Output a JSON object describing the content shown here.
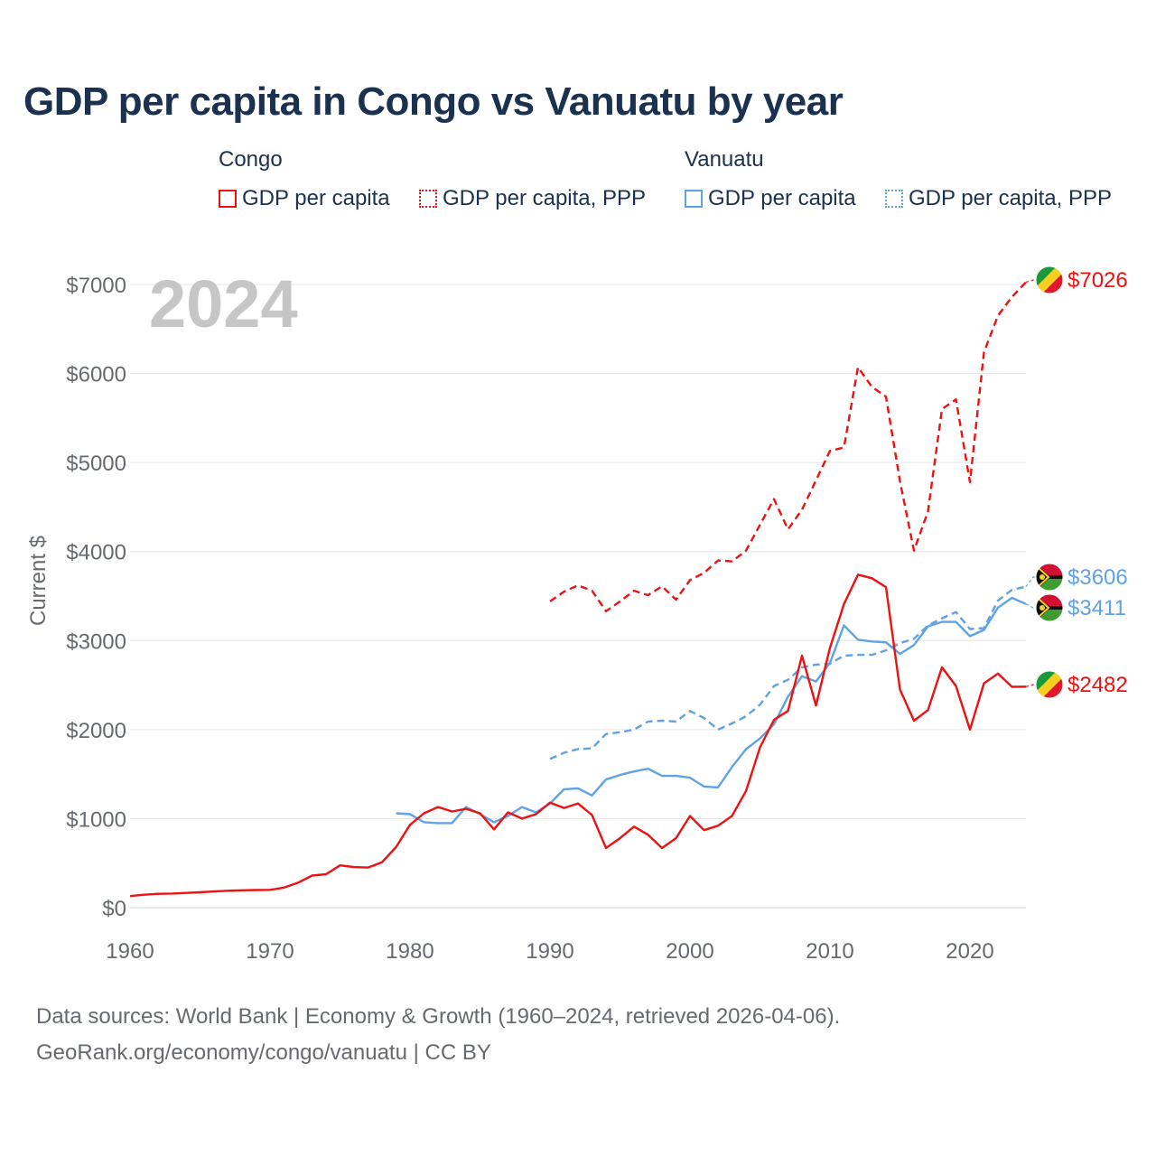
{
  "title": "GDP per capita in Congo vs Vanuatu by year",
  "legend": {
    "groups": [
      {
        "name": "Congo",
        "items": [
          "GDP per capita",
          "GDP per capita, PPP"
        ]
      },
      {
        "name": "Vanuatu",
        "items": [
          "GDP per capita",
          "GDP per capita, PPP"
        ]
      }
    ]
  },
  "colors": {
    "congo": "#ee1111",
    "vanuatu": "#5fa2e6",
    "grid": "#e6e6e6",
    "axis_text": "#666a70",
    "year_watermark": "#c6c6c6"
  },
  "footer": {
    "line1": "Data sources: World Bank | Economy & Growth (1960–2024, retrieved 2026-04-06).",
    "line2": "GeoRank.org/economy/congo/vanuatu | CC BY"
  },
  "chart_data": {
    "type": "line",
    "title": "GDP per capita in Congo vs Vanuatu by year",
    "year_watermark": "2024",
    "xlabel": "",
    "ylabel": "Current $",
    "xlim": [
      1960,
      2024
    ],
    "ylim": [
      0,
      7000
    ],
    "xticks": [
      1960,
      1970,
      1980,
      1990,
      2000,
      2010,
      2020
    ],
    "yticks": [
      0,
      1000,
      2000,
      3000,
      4000,
      5000,
      6000,
      7000
    ],
    "ytick_labels": [
      "$0",
      "$1000",
      "$2000",
      "$3000",
      "$4000",
      "$5000",
      "$6000",
      "$7000"
    ],
    "series": [
      {
        "name": "Congo – GDP per capita PPP",
        "color": "#ee1111",
        "style": "dashed",
        "end_label": "$7026",
        "x": [
          1990,
          1991,
          1992,
          1993,
          1994,
          1995,
          1996,
          1997,
          1998,
          1999,
          2000,
          2001,
          2002,
          2003,
          2004,
          2005,
          2006,
          2007,
          2008,
          2009,
          2010,
          2011,
          2012,
          2013,
          2014,
          2015,
          2016,
          2017,
          2018,
          2019,
          2020,
          2021,
          2022,
          2023,
          2024
        ],
        "values": [
          3440,
          3550,
          3620,
          3560,
          3330,
          3440,
          3560,
          3510,
          3610,
          3460,
          3680,
          3760,
          3900,
          3890,
          4010,
          4300,
          4590,
          4250,
          4470,
          4800,
          5130,
          5170,
          6070,
          5850,
          5740,
          4790,
          4010,
          4450,
          5600,
          5710,
          4780,
          6240,
          6650,
          6860,
          7026
        ]
      },
      {
        "name": "Vanuatu – GDP per capita PPP",
        "color": "#5fa2e6",
        "style": "dashed",
        "end_label": "$3606",
        "x": [
          1990,
          1991,
          1992,
          1993,
          1994,
          1995,
          1996,
          1997,
          1998,
          1999,
          2000,
          2001,
          2002,
          2003,
          2004,
          2005,
          2006,
          2007,
          2008,
          2009,
          2010,
          2011,
          2012,
          2013,
          2014,
          2015,
          2016,
          2017,
          2018,
          2019,
          2020,
          2021,
          2022,
          2023,
          2024
        ],
        "values": [
          1670,
          1740,
          1780,
          1790,
          1950,
          1970,
          2000,
          2090,
          2100,
          2090,
          2210,
          2130,
          2000,
          2070,
          2150,
          2280,
          2490,
          2560,
          2700,
          2730,
          2740,
          2830,
          2840,
          2840,
          2890,
          2970,
          3020,
          3170,
          3250,
          3320,
          3130,
          3140,
          3450,
          3570,
          3606
        ]
      },
      {
        "name": "Vanuatu – GDP per capita",
        "color": "#5fa2e6",
        "style": "solid",
        "end_label": "$3411",
        "x": [
          1979,
          1980,
          1981,
          1982,
          1983,
          1984,
          1985,
          1986,
          1987,
          1988,
          1989,
          1990,
          1991,
          1992,
          1993,
          1994,
          1995,
          1996,
          1997,
          1998,
          1999,
          2000,
          2001,
          2002,
          2003,
          2004,
          2005,
          2006,
          2007,
          2008,
          2009,
          2010,
          2011,
          2012,
          2013,
          2014,
          2015,
          2016,
          2017,
          2018,
          2019,
          2020,
          2021,
          2022,
          2023,
          2024
        ],
        "values": [
          1060,
          1050,
          960,
          950,
          950,
          1130,
          1050,
          960,
          1030,
          1130,
          1070,
          1170,
          1330,
          1340,
          1260,
          1440,
          1490,
          1530,
          1560,
          1480,
          1480,
          1460,
          1360,
          1350,
          1580,
          1780,
          1900,
          2060,
          2370,
          2600,
          2540,
          2750,
          3170,
          3010,
          2990,
          2980,
          2850,
          2950,
          3160,
          3210,
          3210,
          3050,
          3120,
          3370,
          3480,
          3411
        ]
      },
      {
        "name": "Congo – GDP per capita",
        "color": "#ee1111",
        "style": "solid",
        "end_label": "$2482",
        "x": [
          1960,
          1961,
          1962,
          1963,
          1964,
          1965,
          1966,
          1967,
          1968,
          1969,
          1970,
          1971,
          1972,
          1973,
          1974,
          1975,
          1976,
          1977,
          1978,
          1979,
          1980,
          1981,
          1982,
          1983,
          1984,
          1985,
          1986,
          1987,
          1988,
          1989,
          1990,
          1991,
          1992,
          1993,
          1994,
          1995,
          1996,
          1997,
          1998,
          1999,
          2000,
          2001,
          2002,
          2003,
          2004,
          2005,
          2006,
          2007,
          2008,
          2009,
          2010,
          2011,
          2012,
          2013,
          2014,
          2015,
          2016,
          2017,
          2018,
          2019,
          2020,
          2021,
          2022,
          2023,
          2024
        ],
        "values": [
          130,
          145,
          155,
          158,
          165,
          172,
          182,
          190,
          195,
          198,
          200,
          225,
          280,
          360,
          375,
          475,
          455,
          450,
          510,
          680,
          930,
          1060,
          1130,
          1080,
          1110,
          1060,
          880,
          1070,
          1000,
          1050,
          1180,
          1120,
          1170,
          1040,
          670,
          780,
          910,
          820,
          670,
          780,
          1030,
          870,
          920,
          1030,
          1310,
          1800,
          2110,
          2210,
          2830,
          2270,
          2920,
          3410,
          3740,
          3700,
          3600,
          2450,
          2100,
          2220,
          2700,
          2490,
          2000,
          2520,
          2630,
          2480,
          2482
        ]
      }
    ]
  }
}
